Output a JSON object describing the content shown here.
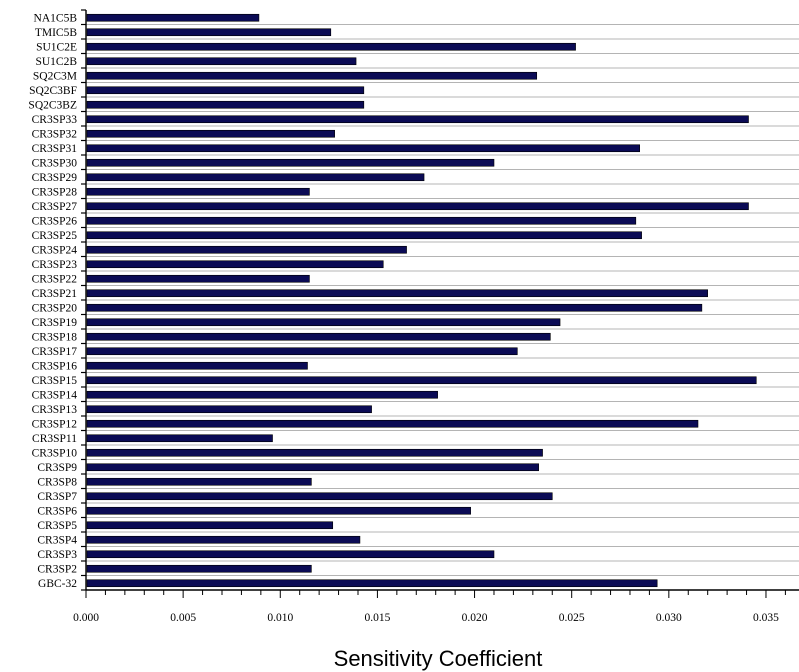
{
  "chart_data": {
    "type": "bar",
    "orientation": "horizontal",
    "xlabel": "Sensitivity Coefficient",
    "ylabel": "",
    "title": "",
    "xlim": [
      0,
      0.0367
    ],
    "x_ticks": [
      "0.000",
      "0.005",
      "0.010",
      "0.015",
      "0.020",
      "0.025",
      "0.030",
      "0.035"
    ],
    "grid": {
      "horizontal": true,
      "vertical": false
    },
    "colors": {
      "bar": "#0b0b55",
      "grid": "#b4b4b4",
      "axis": "#000000"
    },
    "categories": [
      "NA1C5B",
      "TMIC5B",
      "SU1C2E",
      "SU1C2B",
      "SQ2C3M",
      "SQ2C3BF",
      "SQ2C3BZ",
      "CR3SP33",
      "CR3SP32",
      "CR3SP31",
      "CR3SP30",
      "CR3SP29",
      "CR3SP28",
      "CR3SP27",
      "CR3SP26",
      "CR3SP25",
      "CR3SP24",
      "CR3SP23",
      "CR3SP22",
      "CR3SP21",
      "CR3SP20",
      "CR3SP19",
      "CR3SP18",
      "CR3SP17",
      "CR3SP16",
      "CR3SP15",
      "CR3SP14",
      "CR3SP13",
      "CR3SP12",
      "CR3SP11",
      "CR3SP10",
      "CR3SP9",
      "CR3SP8",
      "CR3SP7",
      "CR3SP6",
      "CR3SP5",
      "CR3SP4",
      "CR3SP3",
      "CR3SP2",
      "GBC-32"
    ],
    "values": [
      0.0089,
      0.0126,
      0.0252,
      0.0139,
      0.0232,
      0.0143,
      0.0143,
      0.0341,
      0.0128,
      0.0285,
      0.021,
      0.0174,
      0.0115,
      0.0341,
      0.0283,
      0.0286,
      0.0165,
      0.0153,
      0.0115,
      0.032,
      0.0317,
      0.0244,
      0.0239,
      0.0222,
      0.0114,
      0.0345,
      0.0181,
      0.0147,
      0.0315,
      0.0096,
      0.0235,
      0.0233,
      0.0116,
      0.024,
      0.0198,
      0.0127,
      0.0141,
      0.021,
      0.0116,
      0.0294
    ]
  }
}
